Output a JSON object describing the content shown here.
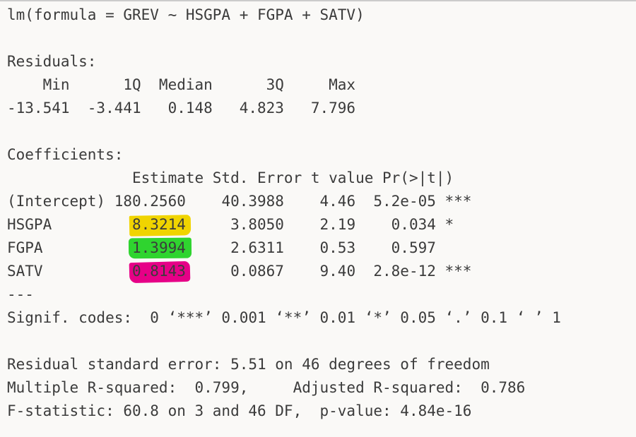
{
  "page": {
    "background": "#faf9f7",
    "text_color": "#3b3b3b",
    "top_border_color": "#cbcbcb"
  },
  "highlight_colors": {
    "yellow": "#f0d400",
    "green": "#2fd42f",
    "magenta": "#e60087"
  },
  "call_line": "lm(formula = GREV ~ HSGPA + FGPA + SATV)",
  "residuals": {
    "heading": "Residuals:",
    "header_row": "    Min      1Q  Median      3Q     Max",
    "values_row": "-13.541  -3.441   0.148   4.823   7.796",
    "stats": {
      "min": -13.541,
      "q1": -3.441,
      "median": 0.148,
      "q3": 4.823,
      "max": 7.796
    }
  },
  "coefficients": {
    "heading": "Coefficients:",
    "header_row": "              Estimate Std. Error t value Pr(>|t|)",
    "rows": [
      {
        "term": "(Intercept)",
        "pre": "(Intercept) ",
        "estimate": "180.2560",
        "rest": "    40.3988    4.46  5.2e-05 ***",
        "std_error": "40.3988",
        "t_value": "4.46",
        "p_value": "5.2e-05",
        "signif": "***",
        "highlight": "none"
      },
      {
        "term": "HSGPA",
        "pre": "HSGPA         ",
        "estimate": "8.3214",
        "rest": "     3.8050    2.19    0.034 *",
        "std_error": "3.8050",
        "t_value": "2.19",
        "p_value": "0.034",
        "signif": "*",
        "highlight": "yellow"
      },
      {
        "term": "FGPA",
        "pre": "FGPA          ",
        "estimate": "1.3994",
        "rest": "     2.6311    0.53    0.597",
        "std_error": "2.6311",
        "t_value": "0.53",
        "p_value": "0.597",
        "signif": "",
        "highlight": "green"
      },
      {
        "term": "SATV",
        "pre": "SATV          ",
        "estimate": "0.8143",
        "rest": "     0.0867    9.40  2.8e-12 ***",
        "std_error": "0.0867",
        "t_value": "9.40",
        "p_value": "2.8e-12",
        "signif": "***",
        "highlight": "magenta"
      }
    ],
    "separator": "---",
    "signif_codes_line": "Signif. codes:  0 ‘***’ 0.001 ‘**’ 0.01 ‘*’ 0.05 ‘.’ 0.1 ‘ ’ 1"
  },
  "summary": {
    "residual_se_line": "Residual standard error: 5.51 on 46 degrees of freedom",
    "r_squared_line": "Multiple R-squared:  0.799,     Adjusted R-squared:  0.786",
    "f_statistic_line": "F-statistic: 60.8 on 3 and 46 DF,  p-value: 4.84e-16",
    "residual_standard_error": 5.51,
    "degrees_of_freedom": 46,
    "multiple_r_squared": 0.799,
    "adjusted_r_squared": 0.786,
    "f_statistic": 60.8,
    "f_df1": 3,
    "f_df2": 46,
    "p_value": "4.84e-16"
  }
}
